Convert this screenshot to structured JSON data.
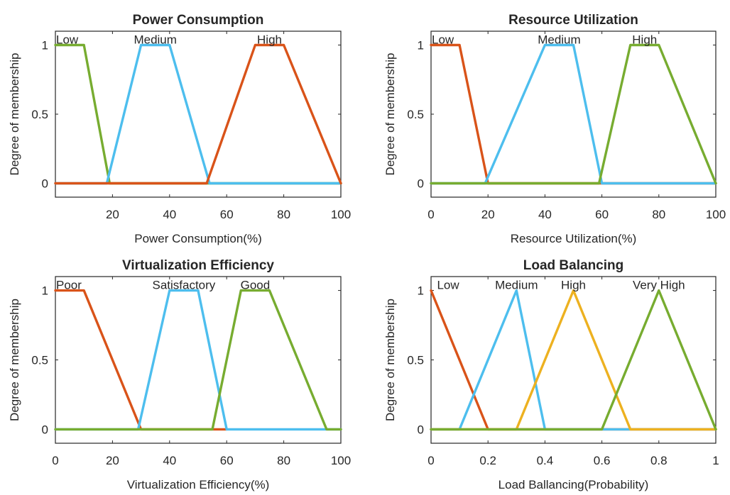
{
  "chart_data": [
    {
      "type": "line",
      "title": "Power Consumption",
      "xlabel": "Power Consumption(%)",
      "ylabel": "Degree of membership",
      "xlim": [
        0,
        100
      ],
      "ylim": [
        -0.1,
        1.1
      ],
      "xticks": [
        20,
        40,
        60,
        80,
        100
      ],
      "xtick_labels": [
        "20",
        "40",
        "60",
        "80",
        "100"
      ],
      "yticks": [
        0,
        0.5,
        1
      ],
      "ytick_labels": [
        "0",
        "0.5",
        "1"
      ],
      "series": [
        {
          "name": "Low",
          "color": "#77AC30",
          "x": [
            0,
            10,
            19,
            100
          ],
          "y": [
            1,
            1,
            0,
            0
          ]
        },
        {
          "name": "Medium",
          "color": "#4DBEEE",
          "x": [
            0,
            18,
            30,
            40,
            54,
            100
          ],
          "y": [
            0,
            0,
            1,
            1,
            0,
            0
          ]
        },
        {
          "name": "High",
          "color": "#D95319",
          "x": [
            0,
            53,
            70,
            80,
            100
          ],
          "y": [
            0,
            0,
            1,
            1,
            0
          ]
        }
      ],
      "labels": [
        {
          "text": "Low",
          "x": 0
        },
        {
          "text": "Medium",
          "x": 35
        },
        {
          "text": "High",
          "x": 75
        }
      ]
    },
    {
      "type": "line",
      "title": "Resource Utilization",
      "xlabel": "Resource Utilization(%)",
      "ylabel": "Degree of membership",
      "xlim": [
        0,
        100
      ],
      "ylim": [
        -0.1,
        1.1
      ],
      "xticks": [
        0,
        20,
        40,
        60,
        80,
        100
      ],
      "xtick_labels": [
        "0",
        "20",
        "40",
        "60",
        "80",
        "100"
      ],
      "yticks": [
        0,
        0.5,
        1
      ],
      "ytick_labels": [
        "0",
        "0.5",
        "1"
      ],
      "series": [
        {
          "name": "Low",
          "color": "#D95319",
          "x": [
            0,
            10,
            20,
            100
          ],
          "y": [
            1,
            1,
            0,
            0
          ]
        },
        {
          "name": "Medium",
          "color": "#4DBEEE",
          "x": [
            0,
            19,
            40,
            50,
            60,
            100
          ],
          "y": [
            0,
            0,
            1,
            1,
            0,
            0
          ]
        },
        {
          "name": "High",
          "color": "#77AC30",
          "x": [
            0,
            59,
            70,
            80,
            100
          ],
          "y": [
            0,
            0,
            1,
            1,
            0
          ]
        }
      ],
      "labels": [
        {
          "text": "Low",
          "x": 0
        },
        {
          "text": "Medium",
          "x": 45
        },
        {
          "text": "High",
          "x": 75
        }
      ]
    },
    {
      "type": "line",
      "title": "Virtualization Efficiency",
      "xlabel": "Virtualization Efficiency(%)",
      "ylabel": "Degree of membership",
      "xlim": [
        0,
        100
      ],
      "ylim": [
        -0.1,
        1.1
      ],
      "xticks": [
        0,
        20,
        40,
        60,
        80,
        100
      ],
      "xtick_labels": [
        "0",
        "20",
        "40",
        "60",
        "80",
        "100"
      ],
      "yticks": [
        0,
        0.5,
        1
      ],
      "ytick_labels": [
        "0",
        "0.5",
        "1"
      ],
      "series": [
        {
          "name": "Poor",
          "color": "#D95319",
          "x": [
            0,
            10,
            30,
            60
          ],
          "y": [
            1,
            1,
            0,
            0
          ]
        },
        {
          "name": "Satisfactory",
          "color": "#4DBEEE",
          "x": [
            0,
            29,
            40,
            50,
            60,
            100
          ],
          "y": [
            0,
            0,
            1,
            1,
            0,
            0
          ]
        },
        {
          "name": "Good",
          "color": "#77AC30",
          "x": [
            0,
            55,
            65,
            75,
            95,
            100
          ],
          "y": [
            0,
            0,
            1,
            1,
            0,
            0
          ]
        }
      ],
      "labels": [
        {
          "text": "Poor",
          "x": 0
        },
        {
          "text": "Satisfactory",
          "x": 45
        },
        {
          "text": "Good",
          "x": 70
        }
      ]
    },
    {
      "type": "line",
      "title": "Load Balancing",
      "xlabel": "Load Ballancing(Probability)",
      "ylabel": "Degree of membership",
      "xlim": [
        0,
        1
      ],
      "ylim": [
        -0.1,
        1.1
      ],
      "xticks": [
        0,
        0.2,
        0.4,
        0.6,
        0.8,
        1
      ],
      "xtick_labels": [
        "0",
        "0.2",
        "0.4",
        "0.6",
        "0.8",
        "1"
      ],
      "yticks": [
        0,
        0.5,
        1
      ],
      "ytick_labels": [
        "0",
        "0.5",
        "1"
      ],
      "series": [
        {
          "name": "Low",
          "color": "#D95319",
          "x": [
            0,
            0.2,
            1
          ],
          "y": [
            1,
            0,
            0
          ]
        },
        {
          "name": "Medium",
          "color": "#4DBEEE",
          "x": [
            0,
            0.1,
            0.3,
            0.4,
            1
          ],
          "y": [
            0,
            0,
            1,
            0,
            0
          ]
        },
        {
          "name": "High",
          "color": "#EDB120",
          "x": [
            0,
            0.3,
            0.5,
            0.7,
            1
          ],
          "y": [
            0,
            0,
            1,
            0,
            0
          ]
        },
        {
          "name": "Very High",
          "color": "#77AC30",
          "x": [
            0,
            0.6,
            0.8,
            1
          ],
          "y": [
            0,
            0,
            1,
            0
          ]
        }
      ],
      "labels": [
        {
          "text": "Low",
          "x": 0.06
        },
        {
          "text": "Medium",
          "x": 0.3
        },
        {
          "text": "High",
          "x": 0.5
        },
        {
          "text": "Very High",
          "x": 0.8
        }
      ]
    }
  ]
}
